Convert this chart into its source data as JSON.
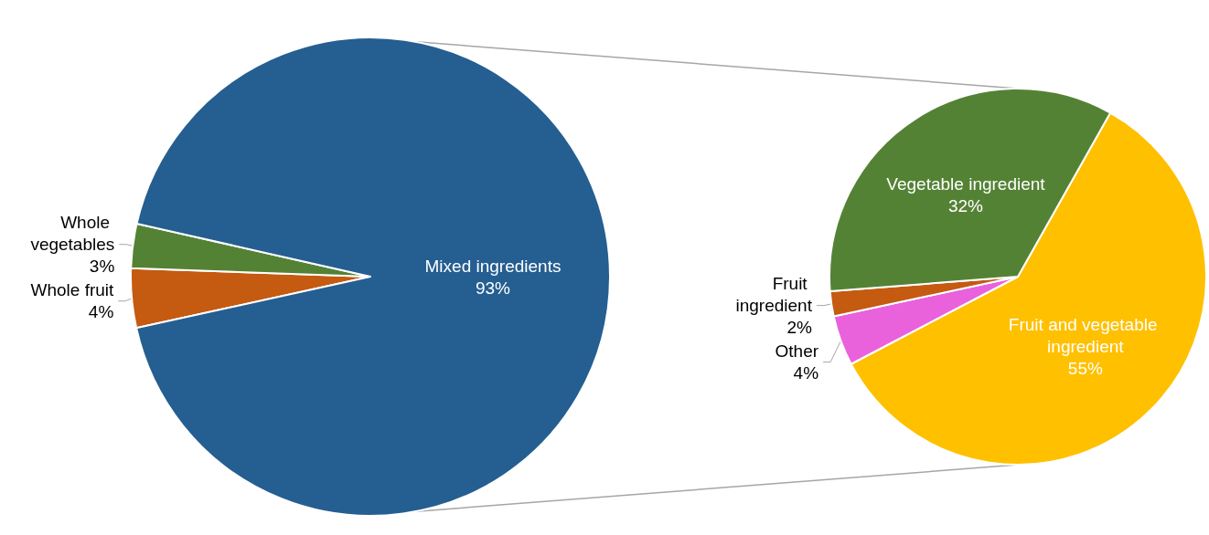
{
  "chart_data": [
    {
      "type": "pie",
      "categories": [
        "Whole fruit",
        "Whole vegetables",
        "Mixed ingredients"
      ],
      "values": [
        4,
        3,
        93
      ],
      "value_labels": [
        "4%",
        "3%",
        "93%"
      ],
      "colors": [
        "#c55a11",
        "#548235",
        "#255e91"
      ]
    },
    {
      "type": "pie",
      "categories": [
        "Fruit and vegetable ingredient",
        "Other",
        "Fruit ingredient",
        "Vegetable ingredient"
      ],
      "values": [
        55,
        4,
        2,
        32
      ],
      "value_labels": [
        "55%",
        "4%",
        "2%",
        "32%"
      ],
      "colors": [
        "#ffc000",
        "#e962dc",
        "#c55a11",
        "#548235"
      ]
    }
  ]
}
